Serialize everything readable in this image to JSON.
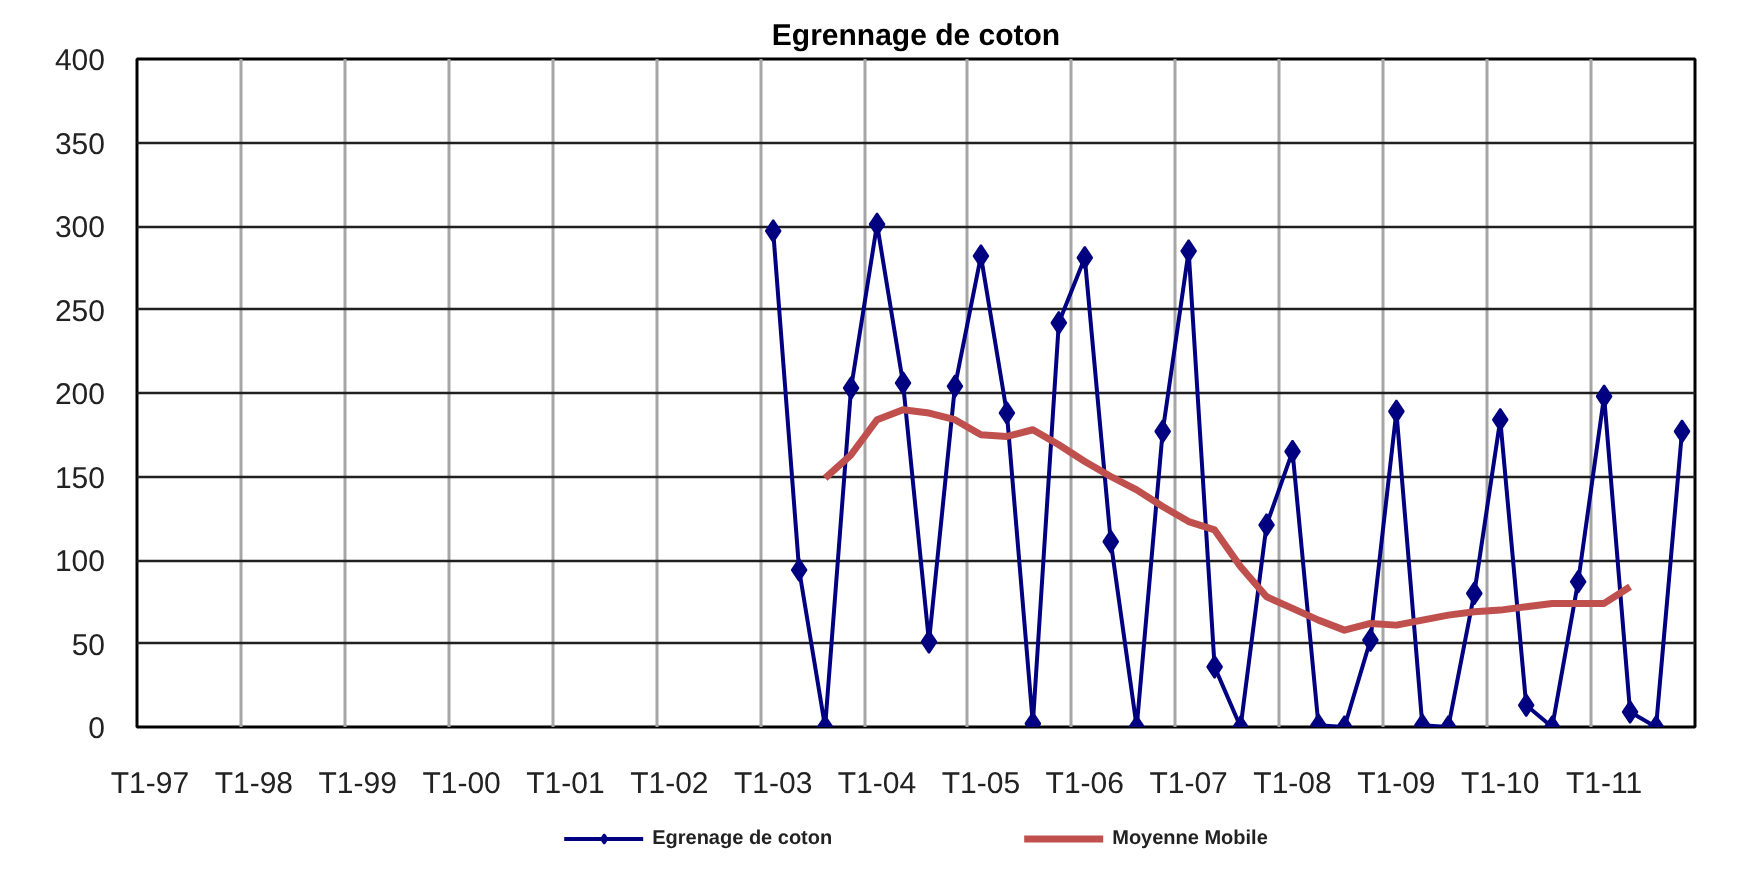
{
  "chart_data": {
    "type": "line",
    "title": "Egrennage de coton",
    "categories": [
      "T1-97",
      null,
      null,
      null,
      "T1-98",
      null,
      null,
      null,
      "T1-99",
      null,
      null,
      null,
      "T1-00",
      null,
      null,
      null,
      "T1-01",
      null,
      null,
      null,
      "T1-02",
      null,
      null,
      null,
      "T1-03",
      null,
      null,
      null,
      "T1-04",
      null,
      null,
      null,
      "T1-05",
      null,
      null,
      null,
      "T1-06",
      null,
      null,
      null,
      "T1-07",
      null,
      null,
      null,
      "T1-08",
      null,
      null,
      null,
      "T1-09",
      null,
      null,
      null,
      "T1-10",
      null,
      null,
      null,
      "T1-11",
      null,
      null,
      null
    ],
    "ylim": [
      0,
      400
    ],
    "yticks": [
      0,
      50,
      100,
      150,
      200,
      250,
      300,
      350,
      400
    ],
    "grid": true,
    "legend": "bottom",
    "marker": "diamond",
    "line_style": "solid",
    "series": [
      {
        "name": "Egrenage de coton",
        "color": "#000080",
        "values": [
          null,
          null,
          null,
          null,
          null,
          null,
          null,
          null,
          null,
          null,
          null,
          null,
          null,
          null,
          null,
          null,
          null,
          null,
          null,
          null,
          null,
          null,
          null,
          null,
          297,
          94,
          0,
          203,
          301,
          206,
          51,
          204,
          282,
          188,
          2,
          242,
          281,
          111,
          0,
          177,
          285,
          36,
          0,
          121,
          165,
          1,
          0,
          52,
          189,
          1,
          0,
          80,
          184,
          13,
          0,
          87,
          198,
          9,
          0,
          177
        ]
      },
      {
        "name": "Moyenne Mobile",
        "color": "#c0504d",
        "marker": "none",
        "values": [
          null,
          null,
          null,
          null,
          null,
          null,
          null,
          null,
          null,
          null,
          null,
          null,
          null,
          null,
          null,
          null,
          null,
          null,
          null,
          null,
          null,
          null,
          null,
          null,
          null,
          null,
          149,
          163,
          184,
          190,
          188,
          184,
          175,
          174,
          178,
          169,
          159,
          150,
          142,
          132,
          123,
          118,
          96,
          78,
          71,
          64,
          58,
          62,
          61,
          64,
          67,
          69,
          70,
          72,
          74,
          74,
          74,
          84,
          null,
          null
        ]
      }
    ]
  }
}
